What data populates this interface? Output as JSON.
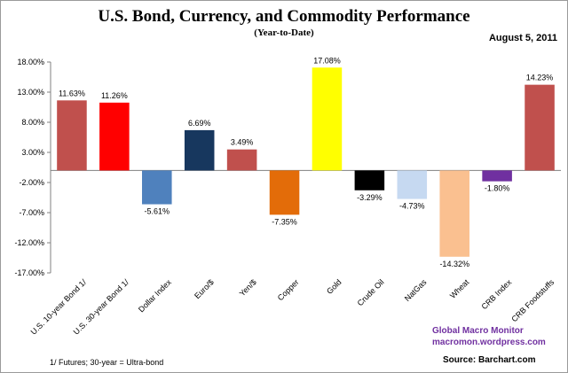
{
  "chart_data": {
    "type": "bar",
    "title": "U.S. Bond, Currency, and Commodity Performance",
    "subtitle": "(Year-to-Date)",
    "date": "August 5, 2011",
    "ylim": [
      -17,
      18
    ],
    "yticks": [
      {
        "value": 18,
        "label": "18.00%"
      },
      {
        "value": 13,
        "label": "13.00%"
      },
      {
        "value": 8,
        "label": "8.00%"
      },
      {
        "value": 3,
        "label": "3.00%"
      },
      {
        "value": -2,
        "label": "-2.00%"
      },
      {
        "value": -7,
        "label": "-7.00%"
      },
      {
        "value": -12,
        "label": "-12.00%"
      },
      {
        "value": -17,
        "label": "-17.00%"
      }
    ],
    "bars": [
      {
        "category": "U.S. 10-year Bond 1/",
        "value": 11.63,
        "label": "11.63%",
        "color": "#c0504d"
      },
      {
        "category": "U.S. 30-year Bond 1/",
        "value": 11.26,
        "label": "11.26%",
        "color": "#ff0000"
      },
      {
        "category": "Dollar Index",
        "value": -5.61,
        "label": "-5.61%",
        "color": "#4f81bd"
      },
      {
        "category": "Euro/$",
        "value": 6.69,
        "label": "6.69%",
        "color": "#17375e"
      },
      {
        "category": "Yen/$",
        "value": 3.49,
        "label": "3.49%",
        "color": "#c0504d"
      },
      {
        "category": "Copper",
        "value": -7.35,
        "label": "-7.35%",
        "color": "#e36c09"
      },
      {
        "category": "Gold",
        "value": 17.08,
        "label": "17.08%",
        "color": "#ffff00"
      },
      {
        "category": "Crude Oil",
        "value": -3.29,
        "label": "-3.29%",
        "color": "#000000"
      },
      {
        "category": "NatGas",
        "value": -4.73,
        "label": "-4.73%",
        "color": "#c6d9f1"
      },
      {
        "category": "Wheat",
        "value": -14.32,
        "label": "-14.32%",
        "color": "#fac090"
      },
      {
        "category": "CRB Index",
        "value": -1.8,
        "label": "-1.80%",
        "color": "#7030a0"
      },
      {
        "category": "CRB Foodstuffs",
        "value": 14.23,
        "label": "14.23%",
        "color": "#c0504d"
      }
    ]
  },
  "credits": {
    "line1": "Global Macro Monitor",
    "line2": "macromon.wordpress.com",
    "source": "Source:  Barchart.com"
  },
  "footnote": "1/  Futures; 30-year = Ultra-bond"
}
